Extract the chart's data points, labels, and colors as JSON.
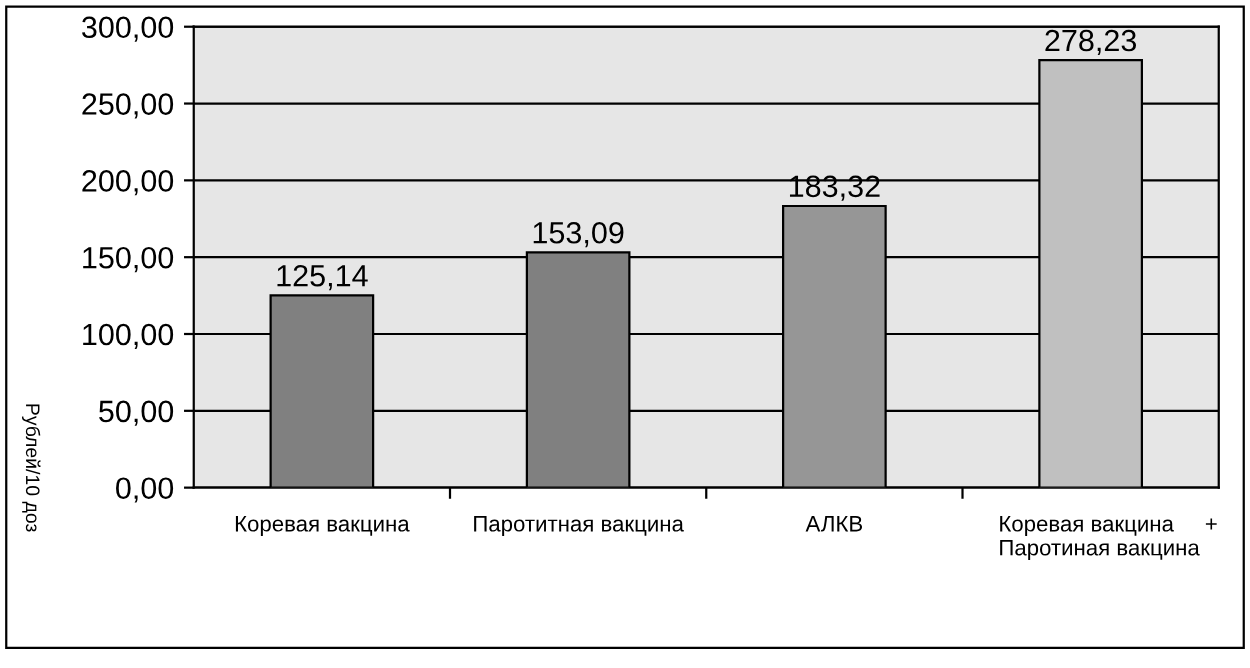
{
  "chart_data": {
    "type": "bar",
    "ylabel": "Рублей/10 доз",
    "categories": [
      "Коревая вакцина",
      "Паротитная вакцина",
      "АЛКВ",
      "Коревая вакцина     +\nПаротиная вакцина"
    ],
    "values": [
      125.14,
      153.09,
      183.32,
      278.23
    ],
    "colors": [
      "#808080",
      "#808080",
      "#969696",
      "#c0c0c0"
    ],
    "value_labels": [
      "125,14",
      "153,09",
      "183,32",
      "278,23"
    ],
    "ylim": [
      0,
      300
    ],
    "yticks": [
      {
        "value": 0,
        "label": "0,00"
      },
      {
        "value": 50,
        "label": "50,00"
      },
      {
        "value": 100,
        "label": "100,00"
      },
      {
        "value": 150,
        "label": "150,00"
      },
      {
        "value": 200,
        "label": "200,00"
      },
      {
        "value": 250,
        "label": "250,00"
      },
      {
        "value": 300,
        "label": "300,00"
      }
    ],
    "grid": "y"
  }
}
